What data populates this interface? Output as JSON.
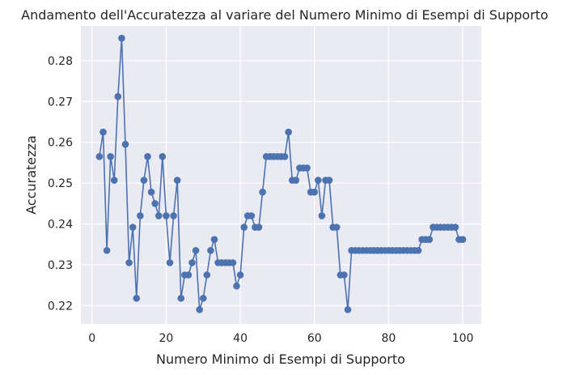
{
  "chart_data": {
    "type": "line",
    "title": "Andamento dell'Accuratezza al variare del Numero Minimo di Esempi di Supporto",
    "xlabel": "Numero Minimo di Esempi di Supporto",
    "ylabel": "Accuratezza",
    "xlim": [
      -3,
      105
    ],
    "ylim": [
      0.2155,
      0.2885
    ],
    "xticks": [
      0,
      20,
      40,
      60,
      80,
      100
    ],
    "yticks": [
      0.22,
      0.23,
      0.24,
      0.25,
      0.26,
      0.27,
      0.28
    ],
    "ytick_labels": [
      "0.22",
      "0.23",
      "0.24",
      "0.25",
      "0.26",
      "0.27",
      "0.28"
    ],
    "grid": true,
    "marker": "o",
    "series": [
      {
        "color": "#4c72b0",
        "x": [
          2,
          3,
          4,
          5,
          6,
          7,
          8,
          9,
          10,
          11,
          12,
          13,
          14,
          15,
          16,
          17,
          18,
          19,
          20,
          21,
          22,
          23,
          24,
          25,
          26,
          27,
          28,
          29,
          30,
          31,
          32,
          33,
          34,
          35,
          36,
          37,
          38,
          39,
          40,
          41,
          42,
          43,
          44,
          45,
          46,
          47,
          48,
          49,
          50,
          51,
          52,
          53,
          54,
          55,
          56,
          57,
          58,
          59,
          60,
          61,
          62,
          63,
          64,
          65,
          66,
          67,
          68,
          69,
          70,
          71,
          72,
          73,
          74,
          75,
          76,
          77,
          78,
          79,
          80,
          81,
          82,
          83,
          84,
          85,
          86,
          87,
          88,
          89,
          90,
          91,
          92,
          93,
          94,
          95,
          96,
          97,
          98,
          99,
          100
        ],
        "y": [
          0.2565,
          0.2625,
          0.2335,
          0.2565,
          0.2507,
          0.2712,
          0.2855,
          0.2595,
          0.2305,
          0.2392,
          0.2218,
          0.242,
          0.2507,
          0.2565,
          0.2478,
          0.245,
          0.242,
          0.2565,
          0.242,
          0.2305,
          0.242,
          0.2507,
          0.2218,
          0.2275,
          0.2275,
          0.2305,
          0.2335,
          0.219,
          0.2218,
          0.2275,
          0.2335,
          0.2362,
          0.2305,
          0.2305,
          0.2305,
          0.2305,
          0.2305,
          0.2248,
          0.2275,
          0.2392,
          0.242,
          0.242,
          0.2392,
          0.2392,
          0.2478,
          0.2565,
          0.2565,
          0.2565,
          0.2565,
          0.2565,
          0.2565,
          0.2625,
          0.2507,
          0.2507,
          0.2537,
          0.2537,
          0.2537,
          0.2478,
          0.2478,
          0.2507,
          0.242,
          0.2507,
          0.2507,
          0.2392,
          0.2392,
          0.2275,
          0.2275,
          0.219,
          0.2335,
          0.2335,
          0.2335,
          0.2335,
          0.2335,
          0.2335,
          0.2335,
          0.2335,
          0.2335,
          0.2335,
          0.2335,
          0.2335,
          0.2335,
          0.2335,
          0.2335,
          0.2335,
          0.2335,
          0.2335,
          0.2335,
          0.2362,
          0.2362,
          0.2362,
          0.2392,
          0.2392,
          0.2392,
          0.2392,
          0.2392,
          0.2392,
          0.2392,
          0.2362,
          0.2362
        ]
      }
    ]
  }
}
